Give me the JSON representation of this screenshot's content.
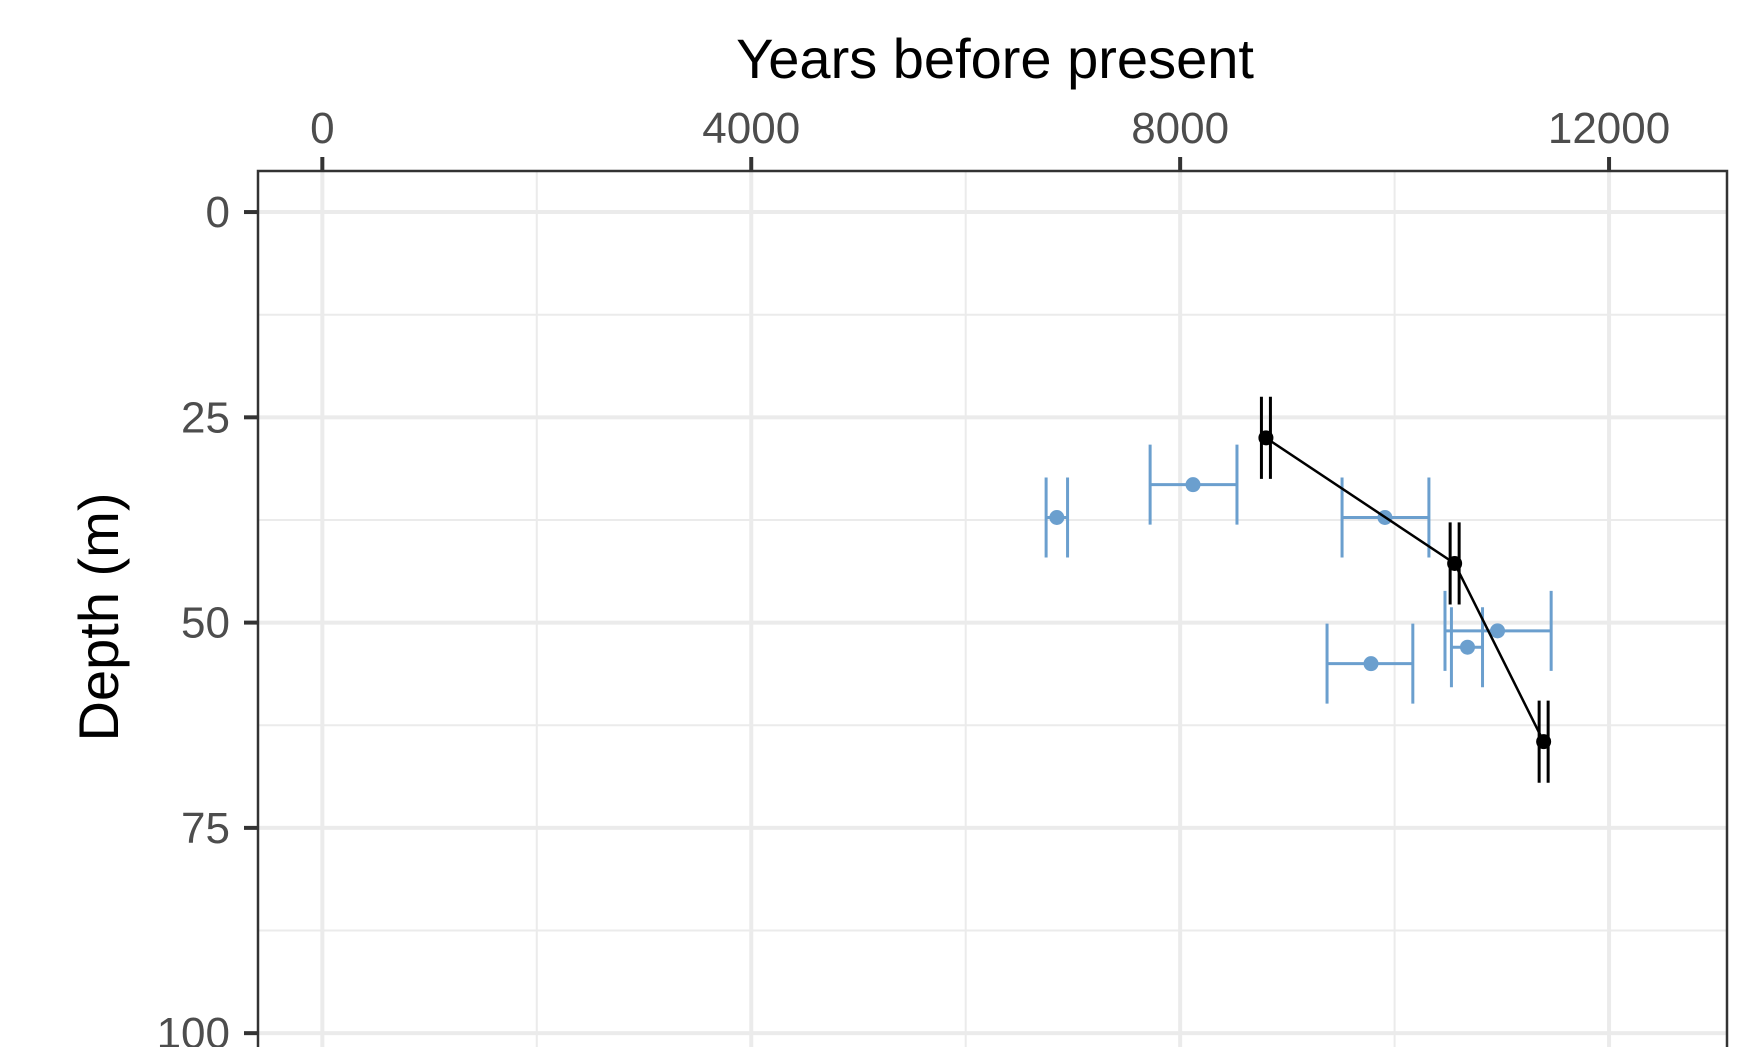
{
  "chart_data": {
    "type": "scatter",
    "title": "",
    "xlabel": "Years before present",
    "ylabel": "Depth (m)",
    "x_axis_position": "top",
    "y_axis_reversed": true,
    "xlim": [
      -600,
      13100
    ],
    "ylim": [
      -5,
      104
    ],
    "x_ticks": [
      0,
      4000,
      8000,
      12000
    ],
    "x_tick_labels": [
      "0",
      "4000",
      "8000",
      "12000"
    ],
    "y_ticks": [
      0,
      25,
      50,
      75,
      100
    ],
    "y_tick_labels": [
      "0",
      "25",
      "50",
      "75",
      "100"
    ],
    "grid": true,
    "legend": "none",
    "colors": {
      "series_a": "#6b9fce",
      "series_b": "#000000",
      "grid": "#ebebeb",
      "frame": "#333333",
      "tick_text": "#4d4d4d"
    },
    "series": [
      {
        "color": "#6b9fce",
        "style": "points-with-horizontal-errorbars",
        "points": [
          {
            "x": 6850,
            "y": 37.2,
            "xmin": 6750,
            "xmax": 6950
          },
          {
            "x": 8120,
            "y": 33.2,
            "xmin": 7720,
            "xmax": 8530
          },
          {
            "x": 9910,
            "y": 37.2,
            "xmin": 9510,
            "xmax": 10320
          },
          {
            "x": 9780,
            "y": 55.0,
            "xmin": 9370,
            "xmax": 10170
          },
          {
            "x": 10680,
            "y": 53.0,
            "xmin": 10530,
            "xmax": 10820
          },
          {
            "x": 10960,
            "y": 51.0,
            "xmin": 10470,
            "xmax": 11460
          }
        ]
      },
      {
        "color": "#000000",
        "style": "line-with-points-and-vertical-errorbars",
        "points": [
          {
            "x": 8800,
            "y": 27.5,
            "ymin": 22.5,
            "ymax": 32.5
          },
          {
            "x": 10560,
            "y": 42.8,
            "ymin": 37.8,
            "ymax": 47.8
          },
          {
            "x": 11390,
            "y": 64.5,
            "ymin": 59.5,
            "ymax": 69.5
          }
        ]
      }
    ]
  }
}
